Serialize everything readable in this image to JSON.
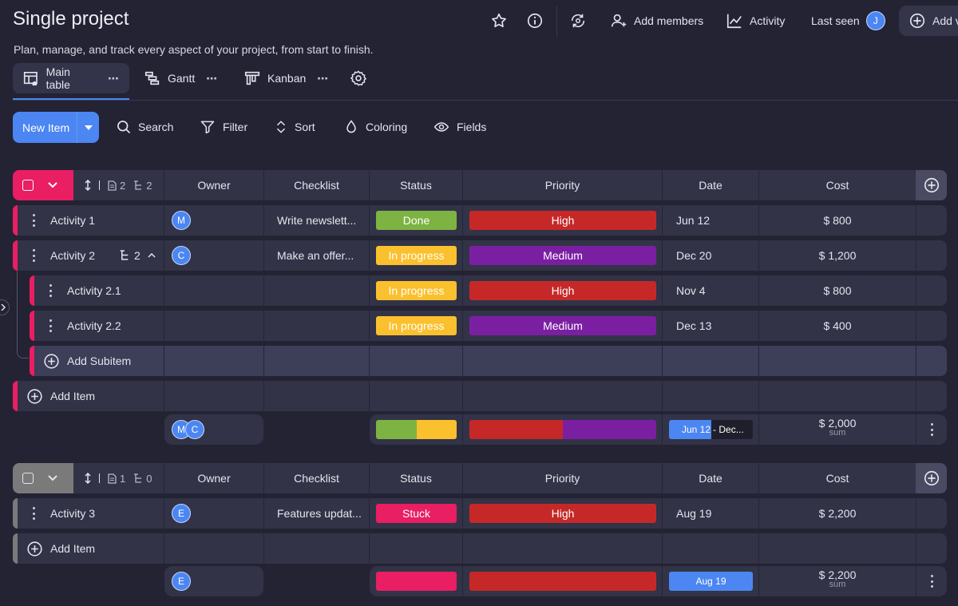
{
  "header": {
    "title": "Single project",
    "subtitle": "Plan, manage, and track every aspect of your project, from start to finish.",
    "add_members": "Add members",
    "activity": "Activity",
    "last_seen": "Last seen",
    "last_seen_avatar": "J",
    "add_view": "Add v"
  },
  "views": [
    {
      "label": "Main table",
      "dots": "⋯"
    },
    {
      "label": "Gantt",
      "dots": "⋯"
    },
    {
      "label": "Kanban",
      "dots": "⋯"
    }
  ],
  "toolbar": {
    "new_item": "New Item",
    "search": "Search",
    "filter": "Filter",
    "sort": "Sort",
    "coloring": "Coloring",
    "fields": "Fields"
  },
  "columns": [
    "Owner",
    "Checklist",
    "Status",
    "Priority",
    "Date",
    "Cost"
  ],
  "colors": {
    "accent": "#4b86f2",
    "group1": "#e91e63",
    "group2": "#7a7a7a",
    "done": "#7cb342",
    "in_progress": "#fbc02d",
    "stuck": "#e91e63",
    "high": "#c62828",
    "medium": "#7b1fa2"
  },
  "group1": {
    "counts": {
      "docs": "2",
      "subitems": "2"
    },
    "rows": [
      {
        "name": "Activity 1",
        "owner": "M",
        "checklist": "Write newslett...",
        "status": "Done",
        "priority": "High",
        "date": "Jun 12",
        "cost": "$ 800"
      },
      {
        "name": "Activity 2",
        "subcount": "2",
        "owner": "C",
        "checklist": "Make an offer...",
        "status": "In progress",
        "priority": "Medium",
        "date": "Dec 20",
        "cost": "$ 1,200"
      },
      {
        "name": "Activity 2.1",
        "status": "In progress",
        "priority": "High",
        "date": "Nov 4",
        "cost": "$ 800"
      },
      {
        "name": "Activity 2.2",
        "status": "In progress",
        "priority": "Medium",
        "date": "Dec 13",
        "cost": "$ 400"
      }
    ],
    "add_subitem": "Add Subitem",
    "add_item": "Add Item",
    "summary": {
      "owners": [
        "M",
        "C"
      ],
      "date_start": "Jun 12",
      "date_end": "- Dec...",
      "cost": "$ 2,000",
      "cost_label": "sum"
    }
  },
  "group2": {
    "counts": {
      "docs": "1",
      "subitems": "0"
    },
    "rows": [
      {
        "name": "Activity 3",
        "owner": "E",
        "checklist": "Features updat...",
        "status": "Stuck",
        "priority": "High",
        "date": "Aug 19",
        "cost": "$ 2,200"
      }
    ],
    "add_item": "Add Item",
    "summary": {
      "owners": [
        "E"
      ],
      "date": "Aug 19",
      "cost": "$ 2,200",
      "cost_label": "sum"
    }
  }
}
